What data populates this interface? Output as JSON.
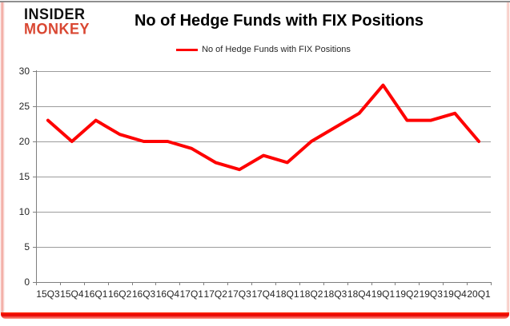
{
  "logo": {
    "line1": "INSIDER",
    "line2": "MONKEY",
    "line1_color": "#111111",
    "line2_color": "#d94732"
  },
  "header": {
    "title": "No of Hedge Funds with FIX Positions"
  },
  "legend": {
    "label": "No of Hedge Funds with FIX Positions",
    "line_color": "#fe0000"
  },
  "chart_data": {
    "type": "line",
    "title": "No of Hedge Funds with FIX Positions",
    "categories": [
      "15Q3",
      "15Q4",
      "16Q1",
      "16Q2",
      "16Q3",
      "16Q4",
      "17Q1",
      "17Q2",
      "17Q3",
      "17Q4",
      "18Q1",
      "18Q2",
      "18Q3",
      "18Q4",
      "19Q1",
      "19Q2",
      "19Q3",
      "19Q4",
      "20Q1"
    ],
    "values": [
      23,
      20,
      23,
      21,
      20,
      20,
      19,
      17,
      16,
      18,
      17,
      20,
      22,
      24,
      28,
      23,
      23,
      24,
      20
    ],
    "xlabel": "",
    "ylabel": "",
    "ylim": [
      0,
      30
    ],
    "yticks": [
      0,
      5,
      10,
      15,
      20,
      25,
      30
    ],
    "grid": true,
    "legend_position": "top",
    "line_color": "#fe0000",
    "gridline_color": "#9c9c9c",
    "axis_color": "#7f7f7f",
    "tick_label_color": "#262626"
  }
}
